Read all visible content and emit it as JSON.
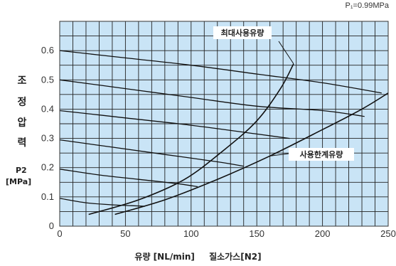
{
  "chart_data": {
    "type": "line",
    "condition_note": "P₁=0.99MPa",
    "ylabel_chars": [
      "조",
      "정",
      "압",
      "력"
    ],
    "ylabel_symbol": "P2",
    "ylabel_unit": "[MPa]",
    "xlabel_parts": [
      "유량 [NL/min]",
      "질소가스[N2]"
    ],
    "xlim": [
      0,
      250
    ],
    "ylim": [
      0,
      0.7
    ],
    "x_ticks": [
      0,
      50,
      100,
      150,
      200,
      250
    ],
    "x_tick_labels": [
      "0",
      "50",
      "100",
      "150",
      "200",
      "250"
    ],
    "y_ticks": [
      0,
      0.1,
      0.2,
      0.3,
      0.4,
      0.5,
      0.6
    ],
    "y_tick_labels": [
      "0",
      "0.1",
      "0.2",
      "0.3",
      "0.4",
      "0.5",
      "0.6"
    ],
    "grid": true,
    "pressure_curves": [
      {
        "x": [
          0,
          50,
          100,
          150,
          200,
          245
        ],
        "y": [
          0.6,
          0.575,
          0.55,
          0.52,
          0.49,
          0.455
        ]
      },
      {
        "x": [
          0,
          50,
          100,
          150,
          200,
          232
        ],
        "y": [
          0.5,
          0.47,
          0.44,
          0.41,
          0.395,
          0.375
        ]
      },
      {
        "x": [
          0,
          50,
          100,
          150,
          175
        ],
        "y": [
          0.395,
          0.37,
          0.345,
          0.315,
          0.3
        ]
      },
      {
        "x": [
          0,
          40,
          80,
          120,
          140
        ],
        "y": [
          0.295,
          0.27,
          0.245,
          0.22,
          0.205
        ]
      },
      {
        "x": [
          0,
          30,
          60,
          90,
          105
        ],
        "y": [
          0.195,
          0.175,
          0.16,
          0.145,
          0.135
        ]
      },
      {
        "x": [
          0,
          20,
          40,
          55,
          65
        ],
        "y": [
          0.095,
          0.08,
          0.073,
          0.07,
          0.068
        ]
      }
    ],
    "limit_curves": [
      {
        "name": "최대사용유량",
        "x": [
          22,
          60,
          95,
          125,
          150,
          168,
          178
        ],
        "y": [
          0.04,
          0.09,
          0.16,
          0.26,
          0.36,
          0.47,
          0.555
        ]
      },
      {
        "name": "사용한계유량",
        "x": [
          42,
          80,
          120,
          160,
          200,
          230,
          250
        ],
        "y": [
          0.04,
          0.09,
          0.16,
          0.24,
          0.33,
          0.4,
          0.455
        ]
      }
    ]
  }
}
